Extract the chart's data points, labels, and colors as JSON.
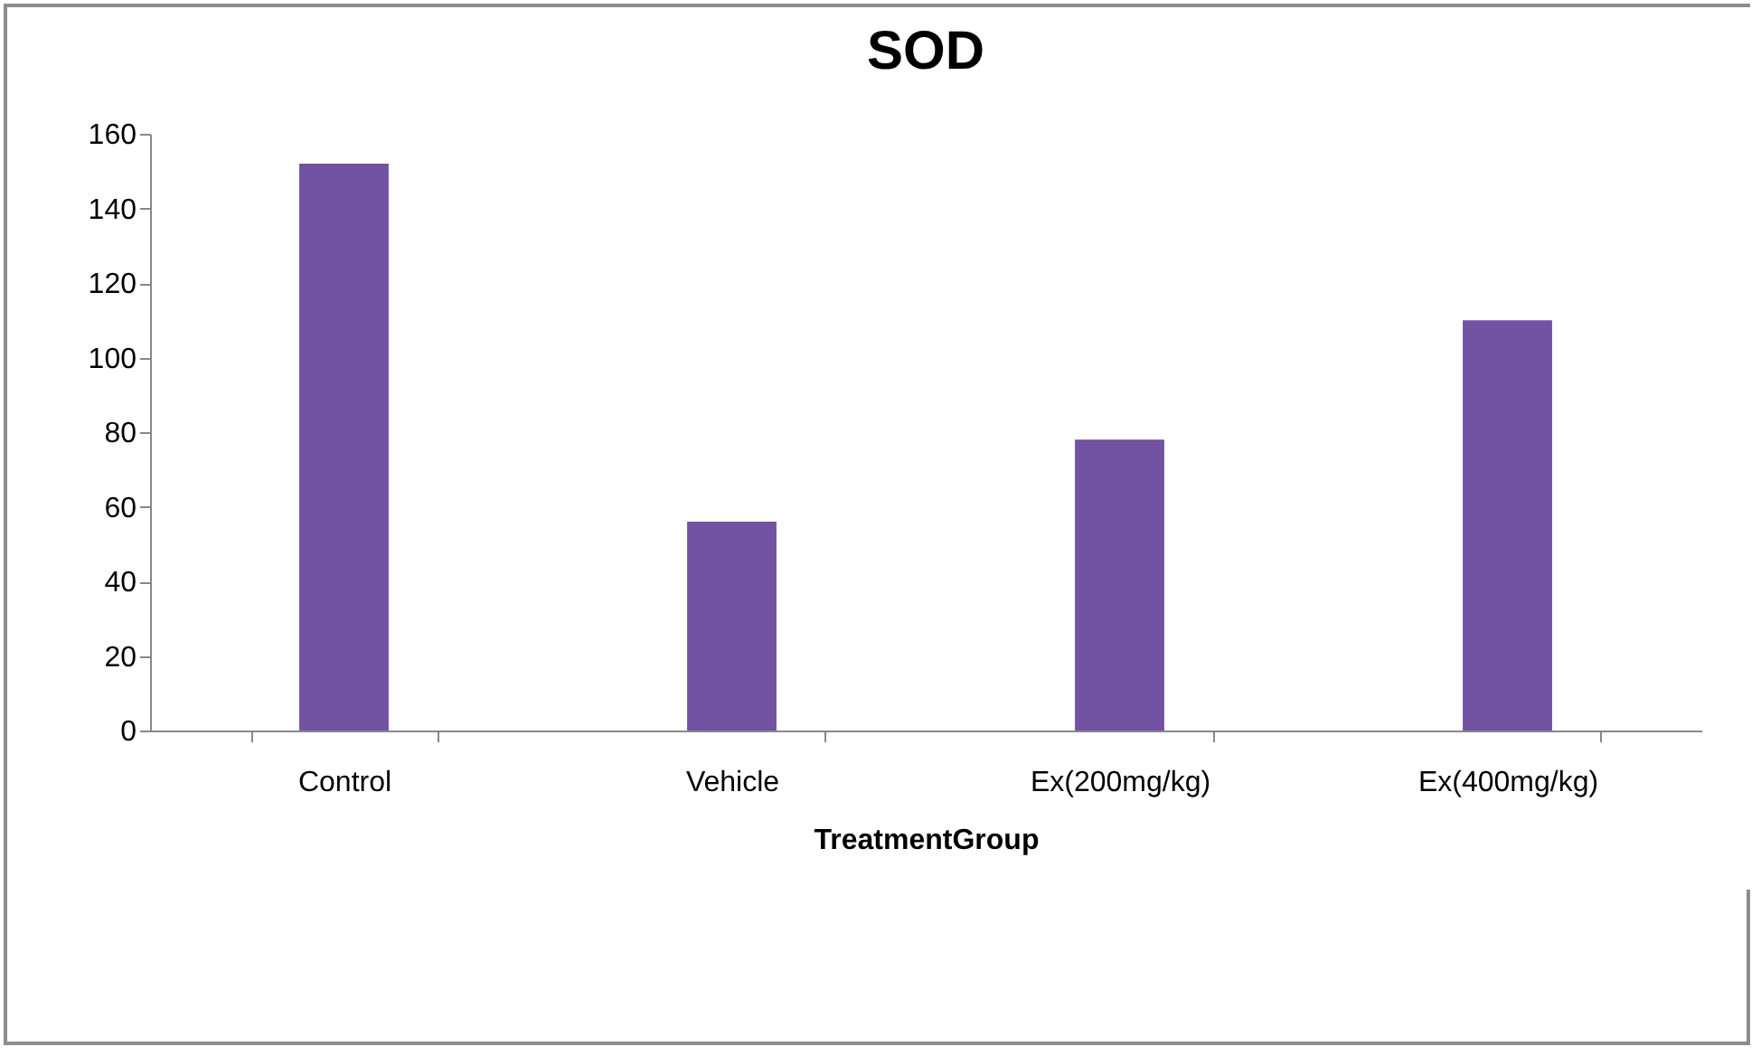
{
  "chart_data": {
    "type": "bar",
    "title": "SOD",
    "xlabel": "TreatmentGroup",
    "categories": [
      "Control",
      "Vehicle",
      "Ex(200mg/kg)",
      "Ex(400mg/kg)"
    ],
    "values": [
      152,
      56,
      78,
      110
    ],
    "color": "#7152a3",
    "ylim": [
      0,
      160
    ],
    "yticks": [
      0,
      20,
      40,
      60,
      80,
      100,
      120,
      140,
      160
    ],
    "grid": false,
    "legend": false
  }
}
